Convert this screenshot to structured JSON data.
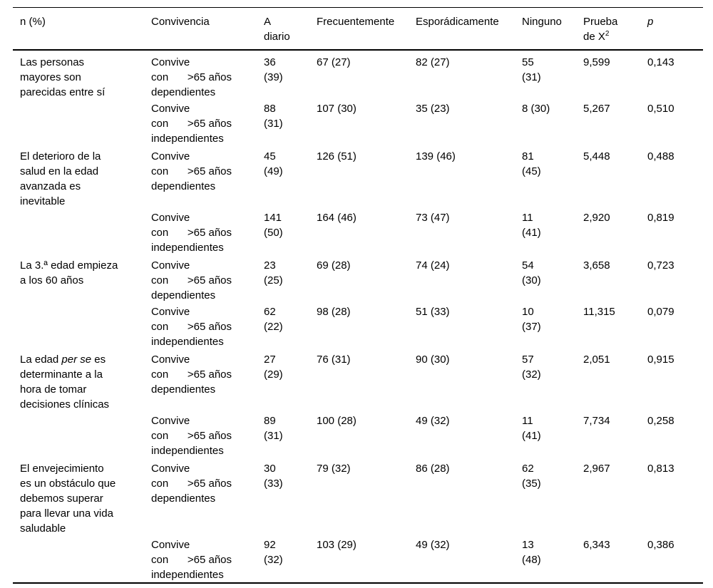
{
  "table": {
    "header": {
      "col1": "n (%)",
      "col2": "Convivencia",
      "col3": "A\ndiario",
      "col4": "Frecuentemente",
      "col5": "Esporádicamente",
      "col6": "Ninguno",
      "col7_line1": "Prueba",
      "col7_line2": "de X",
      "col7_sup": "2",
      "col8": "p"
    },
    "groups": [
      {
        "statement": [
          {
            "text": "Las personas\nmayores son\nparecidas entre sí"
          }
        ],
        "rows": [
          {
            "convivencia": {
              "line1": "Convive",
              "line2_left": "con",
              "line2_right": ">65 años",
              "line3": "dependientes"
            },
            "a_diario": "36\n(39)",
            "frecuentemente": "67 (27)",
            "esporadicamente": "82 (27)",
            "ninguno": "55\n(31)",
            "prueba_x2": "9,599",
            "p": "0,143"
          },
          {
            "convivencia": {
              "line1": "Convive",
              "line2_left": "con",
              "line2_right": ">65 años",
              "line3": "independientes"
            },
            "a_diario": "88\n(31)",
            "frecuentemente": "107 (30)",
            "esporadicamente": "35 (23)",
            "ninguno": "8 (30)",
            "prueba_x2": "5,267",
            "p": "0,510"
          }
        ]
      },
      {
        "statement": [
          {
            "text": "El deterioro de la\nsalud en la edad\navanzada es\ninevitable"
          }
        ],
        "rows": [
          {
            "convivencia": {
              "line1": "Convive",
              "line2_left": "con",
              "line2_right": ">65 años",
              "line3": "dependientes"
            },
            "a_diario": "45\n(49)",
            "frecuentemente": "126 (51)",
            "esporadicamente": "139 (46)",
            "ninguno": "81\n(45)",
            "prueba_x2": "5,448",
            "p": "0,488"
          },
          {
            "convivencia": {
              "line1": "Convive",
              "line2_left": "con",
              "line2_right": ">65 años",
              "line3": "independientes"
            },
            "a_diario": "141\n(50)",
            "frecuentemente": "164 (46)",
            "esporadicamente": "73 (47)",
            "ninguno": "11\n(41)",
            "prueba_x2": "2,920",
            "p": "0,819"
          }
        ]
      },
      {
        "statement": [
          {
            "text": "La 3.ª edad empieza\na los 60 años"
          }
        ],
        "rows": [
          {
            "convivencia": {
              "line1": "Convive",
              "line2_left": "con",
              "line2_right": ">65 años",
              "line3": "dependientes"
            },
            "a_diario": "23\n(25)",
            "frecuentemente": "69 (28)",
            "esporadicamente": "74 (24)",
            "ninguno": "54\n(30)",
            "prueba_x2": "3,658",
            "p": "0,723"
          },
          {
            "convivencia": {
              "line1": "Convive",
              "line2_left": "con",
              "line2_right": ">65 años",
              "line3": "independientes"
            },
            "a_diario": "62\n(22)",
            "frecuentemente": "98 (28)",
            "esporadicamente": "51 (33)",
            "ninguno": "10\n(37)",
            "prueba_x2": "11,315",
            "p": "0,079"
          }
        ]
      },
      {
        "statement": [
          {
            "text": "La edad "
          },
          {
            "text": "per se",
            "italic": true
          },
          {
            "text": " es\ndeterminante a la\nhora de tomar\ndecisiones clínicas"
          }
        ],
        "rows": [
          {
            "convivencia": {
              "line1": "Convive",
              "line2_left": "con",
              "line2_right": ">65 años",
              "line3": "dependientes"
            },
            "a_diario": "27\n(29)",
            "frecuentemente": "76 (31)",
            "esporadicamente": "90 (30)",
            "ninguno": "57\n(32)",
            "prueba_x2": "2,051",
            "p": "0,915"
          },
          {
            "convivencia": {
              "line1": "Convive",
              "line2_left": "con",
              "line2_right": ">65 años",
              "line3": "independientes"
            },
            "a_diario": "89\n(31)",
            "frecuentemente": "100 (28)",
            "esporadicamente": "49 (32)",
            "ninguno": "11\n(41)",
            "prueba_x2": "7,734",
            "p": "0,258"
          }
        ]
      },
      {
        "statement": [
          {
            "text": "El envejecimiento\nes un obstáculo que\ndebemos superar\npara llevar una vida\nsaludable"
          }
        ],
        "rows": [
          {
            "convivencia": {
              "line1": "Convive",
              "line2_left": "con",
              "line2_right": ">65 años",
              "line3": "dependientes"
            },
            "a_diario": "30\n(33)",
            "frecuentemente": "79 (32)",
            "esporadicamente": "86 (28)",
            "ninguno": "62\n(35)",
            "prueba_x2": "2,967",
            "p": "0,813"
          },
          {
            "convivencia": {
              "line1": "Convive",
              "line2_left": "con",
              "line2_right": ">65 años",
              "line3": "independientes"
            },
            "a_diario": "92\n(32)",
            "frecuentemente": "103 (29)",
            "esporadicamente": "49 (32)",
            "ninguno": "13\n(48)",
            "prueba_x2": "6,343",
            "p": "0,386"
          }
        ]
      }
    ]
  }
}
